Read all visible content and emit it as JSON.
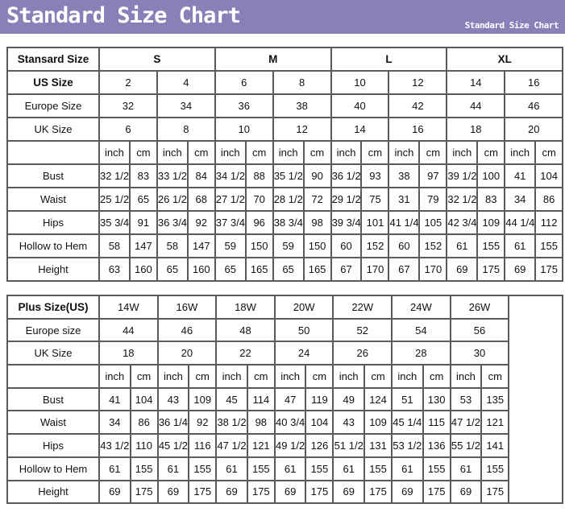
{
  "banner": {
    "title": "Standard Size Chart",
    "subtitle": "Standard Size Chart",
    "color": "#8a80b8"
  },
  "standard": {
    "header_label": "Stansard Size",
    "groups": [
      "S",
      "M",
      "L",
      "XL"
    ],
    "us_label": "US Size",
    "us": [
      "2",
      "4",
      "6",
      "8",
      "10",
      "12",
      "14",
      "16"
    ],
    "europe_label": "Europe Size",
    "europe": [
      "32",
      "34",
      "36",
      "38",
      "40",
      "42",
      "44",
      "46"
    ],
    "uk_label": "UK Size",
    "uk": [
      "6",
      "8",
      "10",
      "12",
      "14",
      "16",
      "18",
      "20"
    ],
    "units": [
      "inch",
      "cm"
    ],
    "rows": [
      {
        "label": "Bust",
        "values": [
          "32 1/2",
          "83",
          "33 1/2",
          "84",
          "34 1/2",
          "88",
          "35 1/2",
          "90",
          "36 1/2",
          "93",
          "38",
          "97",
          "39 1/2",
          "100",
          "41",
          "104"
        ]
      },
      {
        "label": "Waist",
        "values": [
          "25 1/2",
          "65",
          "26 1/2",
          "68",
          "27 1/2",
          "70",
          "28 1/2",
          "72",
          "29 1/2",
          "75",
          "31",
          "79",
          "32 1/2",
          "83",
          "34",
          "86"
        ]
      },
      {
        "label": "Hips",
        "values": [
          "35 3/4",
          "91",
          "36 3/4",
          "92",
          "37 3/4",
          "96",
          "38 3/4",
          "98",
          "39 3/4",
          "101",
          "41 1/4",
          "105",
          "42 3/4",
          "109",
          "44 1/4",
          "112"
        ]
      },
      {
        "label": "Hollow to Hem",
        "values": [
          "58",
          "147",
          "58",
          "147",
          "59",
          "150",
          "59",
          "150",
          "60",
          "152",
          "60",
          "152",
          "61",
          "155",
          "61",
          "155"
        ]
      },
      {
        "label": "Height",
        "values": [
          "63",
          "160",
          "65",
          "160",
          "65",
          "165",
          "65",
          "165",
          "67",
          "170",
          "67",
          "170",
          "69",
          "175",
          "69",
          "175"
        ]
      }
    ]
  },
  "plus": {
    "header_label": "Plus Size(US)",
    "sizes": [
      "14W",
      "16W",
      "18W",
      "20W",
      "22W",
      "24W",
      "26W"
    ],
    "europe_label": "Europe size",
    "europe": [
      "44",
      "46",
      "48",
      "50",
      "52",
      "54",
      "56"
    ],
    "uk_label": "UK Size",
    "uk": [
      "18",
      "20",
      "22",
      "24",
      "26",
      "28",
      "30"
    ],
    "units": [
      "inch",
      "cm"
    ],
    "rows": [
      {
        "label": "Bust",
        "values": [
          "41",
          "104",
          "43",
          "109",
          "45",
          "114",
          "47",
          "119",
          "49",
          "124",
          "51",
          "130",
          "53",
          "135"
        ]
      },
      {
        "label": "Waist",
        "values": [
          "34",
          "86",
          "36 1/4",
          "92",
          "38 1/2",
          "98",
          "40 3/4",
          "104",
          "43",
          "109",
          "45 1/4",
          "115",
          "47 1/2",
          "121"
        ]
      },
      {
        "label": "Hips",
        "values": [
          "43 1/2",
          "110",
          "45 1/2",
          "116",
          "47 1/2",
          "121",
          "49 1/2",
          "126",
          "51 1/2",
          "131",
          "53 1/2",
          "136",
          "55 1/2",
          "141"
        ]
      },
      {
        "label": "Hollow to Hem",
        "values": [
          "61",
          "155",
          "61",
          "155",
          "61",
          "155",
          "61",
          "155",
          "61",
          "155",
          "61",
          "155",
          "61",
          "155"
        ]
      },
      {
        "label": "Height",
        "values": [
          "69",
          "175",
          "69",
          "175",
          "69",
          "175",
          "69",
          "175",
          "69",
          "175",
          "69",
          "175",
          "69",
          "175"
        ]
      }
    ]
  }
}
